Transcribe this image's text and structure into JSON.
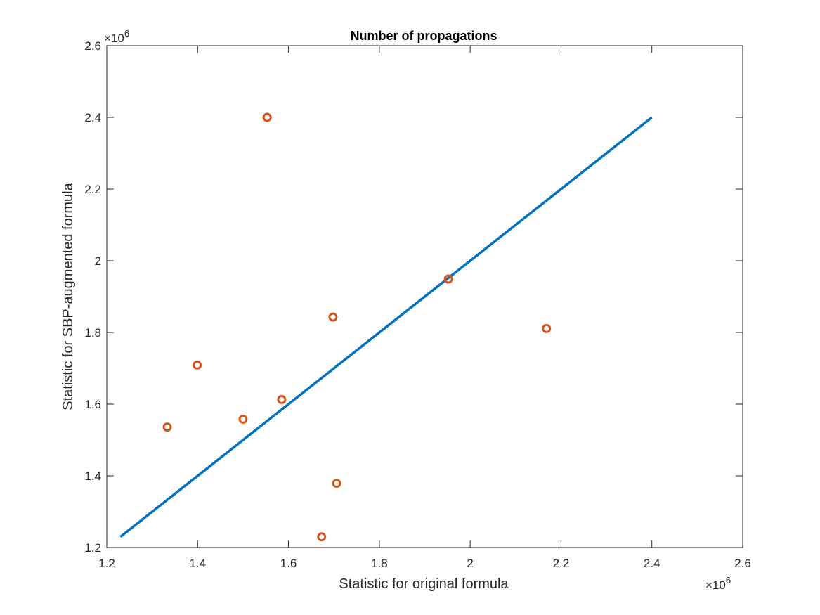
{
  "chart_data": {
    "type": "scatter",
    "title": "Number of propagations",
    "xlabel": "Statistic for original formula",
    "ylabel": "Statistic for SBP-augmented formula",
    "xlim": [
      1.2,
      2.6
    ],
    "ylim": [
      1.2,
      2.6
    ],
    "xticks": [
      "1.2",
      "1.4",
      "1.6",
      "1.8",
      "2",
      "2.2",
      "2.4",
      "2.6"
    ],
    "yticks": [
      "1.2",
      "1.4",
      "1.6",
      "1.8",
      "2",
      "2.2",
      "2.4",
      "2.6"
    ],
    "x_multiplier": {
      "base": "×10",
      "exponent": "6"
    },
    "y_multiplier": {
      "base": "×10",
      "exponent": "6"
    },
    "grid": false,
    "box": true,
    "reference_line": {
      "x": [
        1.23,
        2.4
      ],
      "y": [
        1.23,
        2.4
      ],
      "color": "#0072BD"
    },
    "points": {
      "marker": "circle",
      "color": "#D95319",
      "x": [
        1.333,
        1.399,
        1.5,
        1.553,
        1.585,
        1.673,
        1.698,
        1.706,
        1.952,
        2.168
      ],
      "y": [
        1.536,
        1.709,
        1.558,
        2.4,
        1.613,
        1.23,
        1.843,
        1.379,
        1.949,
        1.811
      ]
    }
  }
}
